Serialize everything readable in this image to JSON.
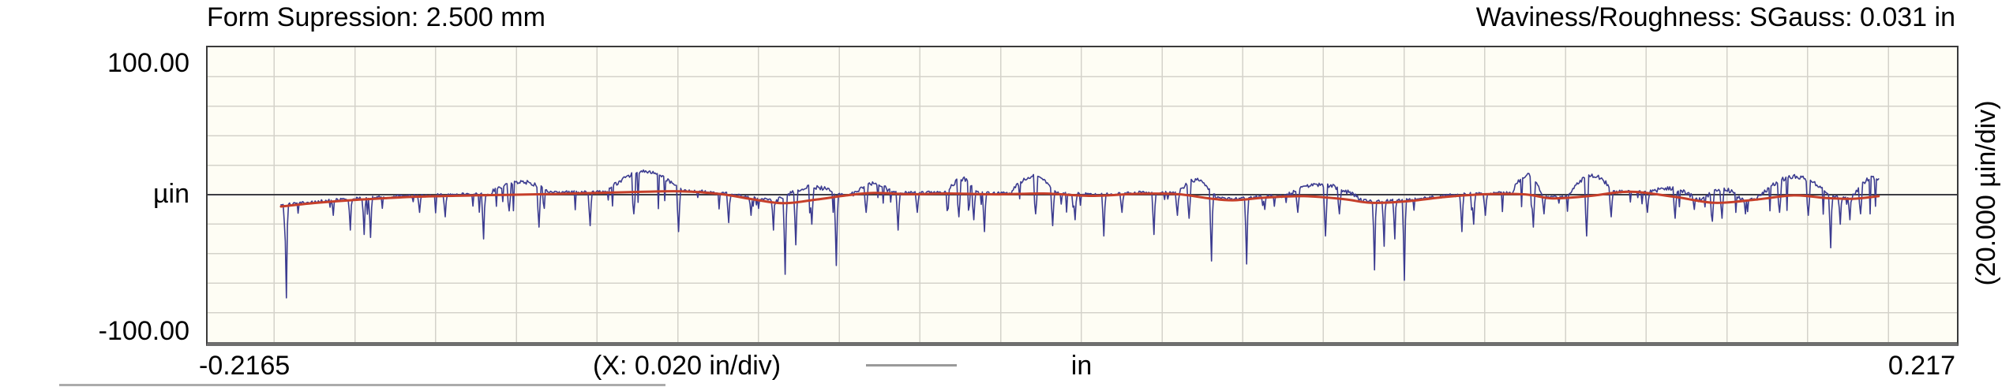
{
  "header": {
    "left_title": "Form Supression: 2.500 mm",
    "right_title": "Waviness/Roughness: SGauss: 0.031 in"
  },
  "y_axis": {
    "max_label": "100.00",
    "unit_label": "µin",
    "min_label": "-100.00",
    "div_label": "(20.000 µin/div)"
  },
  "x_axis": {
    "min_label": "-0.2165",
    "div_label": "(X: 0.020 in/div)",
    "unit_label": "in",
    "max_label": "0.217"
  },
  "colors": {
    "plot_bg": "#fefdf4",
    "grid": "#d4d2ca",
    "zero_line": "#3d3d44",
    "waviness": "#c63f2a",
    "roughness": "#3c3c90",
    "legend_dash": "#9a9a9a",
    "next_panel_edge": "#ababab"
  },
  "chart_data": {
    "type": "line",
    "title": "Waviness/Roughness: SGauss: 0.031 in (Form Supression: 2.500 mm)",
    "xlabel": "in",
    "ylabel": "µin",
    "xlim": [
      -0.2165,
      0.217
    ],
    "ylim": [
      -100,
      100
    ],
    "x_div": 0.02,
    "y_div": 20,
    "grid": true,
    "grid_x_first": -0.2,
    "grid_x_last": 0.2,
    "legend_position": "none",
    "series": [
      {
        "name": "waviness",
        "style": "smooth",
        "color_key": "waviness",
        "stroke_width": 3,
        "points": [
          [
            -0.1983,
            -8
          ],
          [
            -0.1893,
            -5.5
          ],
          [
            -0.1795,
            -3.5
          ],
          [
            -0.1658,
            -1.5
          ],
          [
            -0.1502,
            -0.5
          ],
          [
            -0.1306,
            0.5
          ],
          [
            -0.1111,
            1.8
          ],
          [
            -0.0993,
            2.3
          ],
          [
            -0.0895,
            0.5
          ],
          [
            -0.0817,
            -3
          ],
          [
            -0.0739,
            -5.8
          ],
          [
            -0.0661,
            -3.5
          ],
          [
            -0.0582,
            -0.5
          ],
          [
            -0.0514,
            1.2
          ],
          [
            -0.0426,
            0.3
          ],
          [
            -0.0328,
            0.8
          ],
          [
            -0.0211,
            0.2
          ],
          [
            -0.0093,
            0.8
          ],
          [
            0.0024,
            -0.8
          ],
          [
            0.0141,
            0.6
          ],
          [
            0.0239,
            0.3
          ],
          [
            0.0317,
            -2.5
          ],
          [
            0.0376,
            -3.8
          ],
          [
            0.0454,
            -2
          ],
          [
            0.0552,
            -1
          ],
          [
            0.065,
            -3
          ],
          [
            0.0718,
            -5.5
          ],
          [
            0.0806,
            -4.5
          ],
          [
            0.0904,
            -1.5
          ],
          [
            0.1002,
            0.3
          ],
          [
            0.11,
            0.2
          ],
          [
            0.1168,
            -2.5
          ],
          [
            0.1256,
            -1
          ],
          [
            0.136,
            2
          ],
          [
            0.1471,
            -1.5
          ],
          [
            0.1569,
            -5.5
          ],
          [
            0.1667,
            -3.5
          ],
          [
            0.1765,
            -0.5
          ],
          [
            0.1843,
            -2.2
          ],
          [
            0.1911,
            -2.8
          ],
          [
            0.1976,
            -1
          ]
        ]
      },
      {
        "name": "roughness",
        "style": "noisy",
        "color_key": "roughness",
        "stroke_width": 1.6,
        "generated": {
          "x_start": -0.1983,
          "x_end": 0.1976,
          "points": 1500,
          "seed": 20240917,
          "bias": 0.8,
          "micro": 2.2,
          "bump_chance": 0.025,
          "bump_min_len": 25,
          "bump_len_var": 55,
          "bump_min_h": 5,
          "bump_h_var": 9,
          "tick_chance": 0.04,
          "tick_min": 3,
          "tick_var": 9,
          "spikes": [
            [
              -0.1971,
              -70
            ],
            [
              -0.1854,
              -14
            ],
            [
              -0.1811,
              -24
            ],
            [
              -0.1776,
              -27
            ],
            [
              -0.176,
              -29
            ],
            [
              -0.1639,
              -12
            ],
            [
              -0.1576,
              -15
            ],
            [
              -0.1482,
              -30
            ],
            [
              -0.1418,
              -11
            ],
            [
              -0.1345,
              -22
            ],
            [
              -0.1218,
              -21
            ],
            [
              -0.111,
              -13
            ],
            [
              -0.0999,
              -25
            ],
            [
              -0.0875,
              -19
            ],
            [
              -0.0817,
              -14
            ],
            [
              -0.0764,
              -24
            ],
            [
              -0.0733,
              -54
            ],
            [
              -0.0708,
              -34
            ],
            [
              -0.0668,
              -20
            ],
            [
              -0.0606,
              -48
            ],
            [
              -0.0533,
              -12
            ],
            [
              -0.0455,
              -24
            ],
            [
              -0.0406,
              -12
            ],
            [
              -0.0302,
              -15
            ],
            [
              -0.0265,
              -17
            ],
            [
              -0.024,
              -25
            ],
            [
              -0.0113,
              -13
            ],
            [
              -0.007,
              -21
            ],
            [
              -0.0015,
              -17
            ],
            [
              0.0057,
              -28
            ],
            [
              0.0102,
              -12
            ],
            [
              0.018,
              -27
            ],
            [
              0.0239,
              -14
            ],
            [
              0.0268,
              -16
            ],
            [
              0.0323,
              -45
            ],
            [
              0.0409,
              -47
            ],
            [
              0.0454,
              -10
            ],
            [
              0.0536,
              -12
            ],
            [
              0.0605,
              -28
            ],
            [
              0.064,
              -13
            ],
            [
              0.0728,
              -51
            ],
            [
              0.0751,
              -35
            ],
            [
              0.0777,
              -30
            ],
            [
              0.08,
              -58
            ],
            [
              0.0943,
              -25
            ],
            [
              0.0972,
              -20
            ],
            [
              0.1002,
              -14
            ],
            [
              0.1119,
              -22
            ],
            [
              0.1148,
              -13
            ],
            [
              0.1252,
              -28
            ],
            [
              0.1314,
              -15
            ],
            [
              0.1402,
              -12
            ],
            [
              0.1471,
              -16
            ],
            [
              0.152,
              -10
            ],
            [
              0.1563,
              -18
            ],
            [
              0.1588,
              -16
            ],
            [
              0.1647,
              -13
            ],
            [
              0.1731,
              -12
            ],
            [
              0.1803,
              -14
            ],
            [
              0.1858,
              -36
            ],
            [
              0.1881,
              -20
            ],
            [
              0.1905,
              -17
            ],
            [
              0.193,
              -13
            ]
          ]
        }
      }
    ]
  }
}
